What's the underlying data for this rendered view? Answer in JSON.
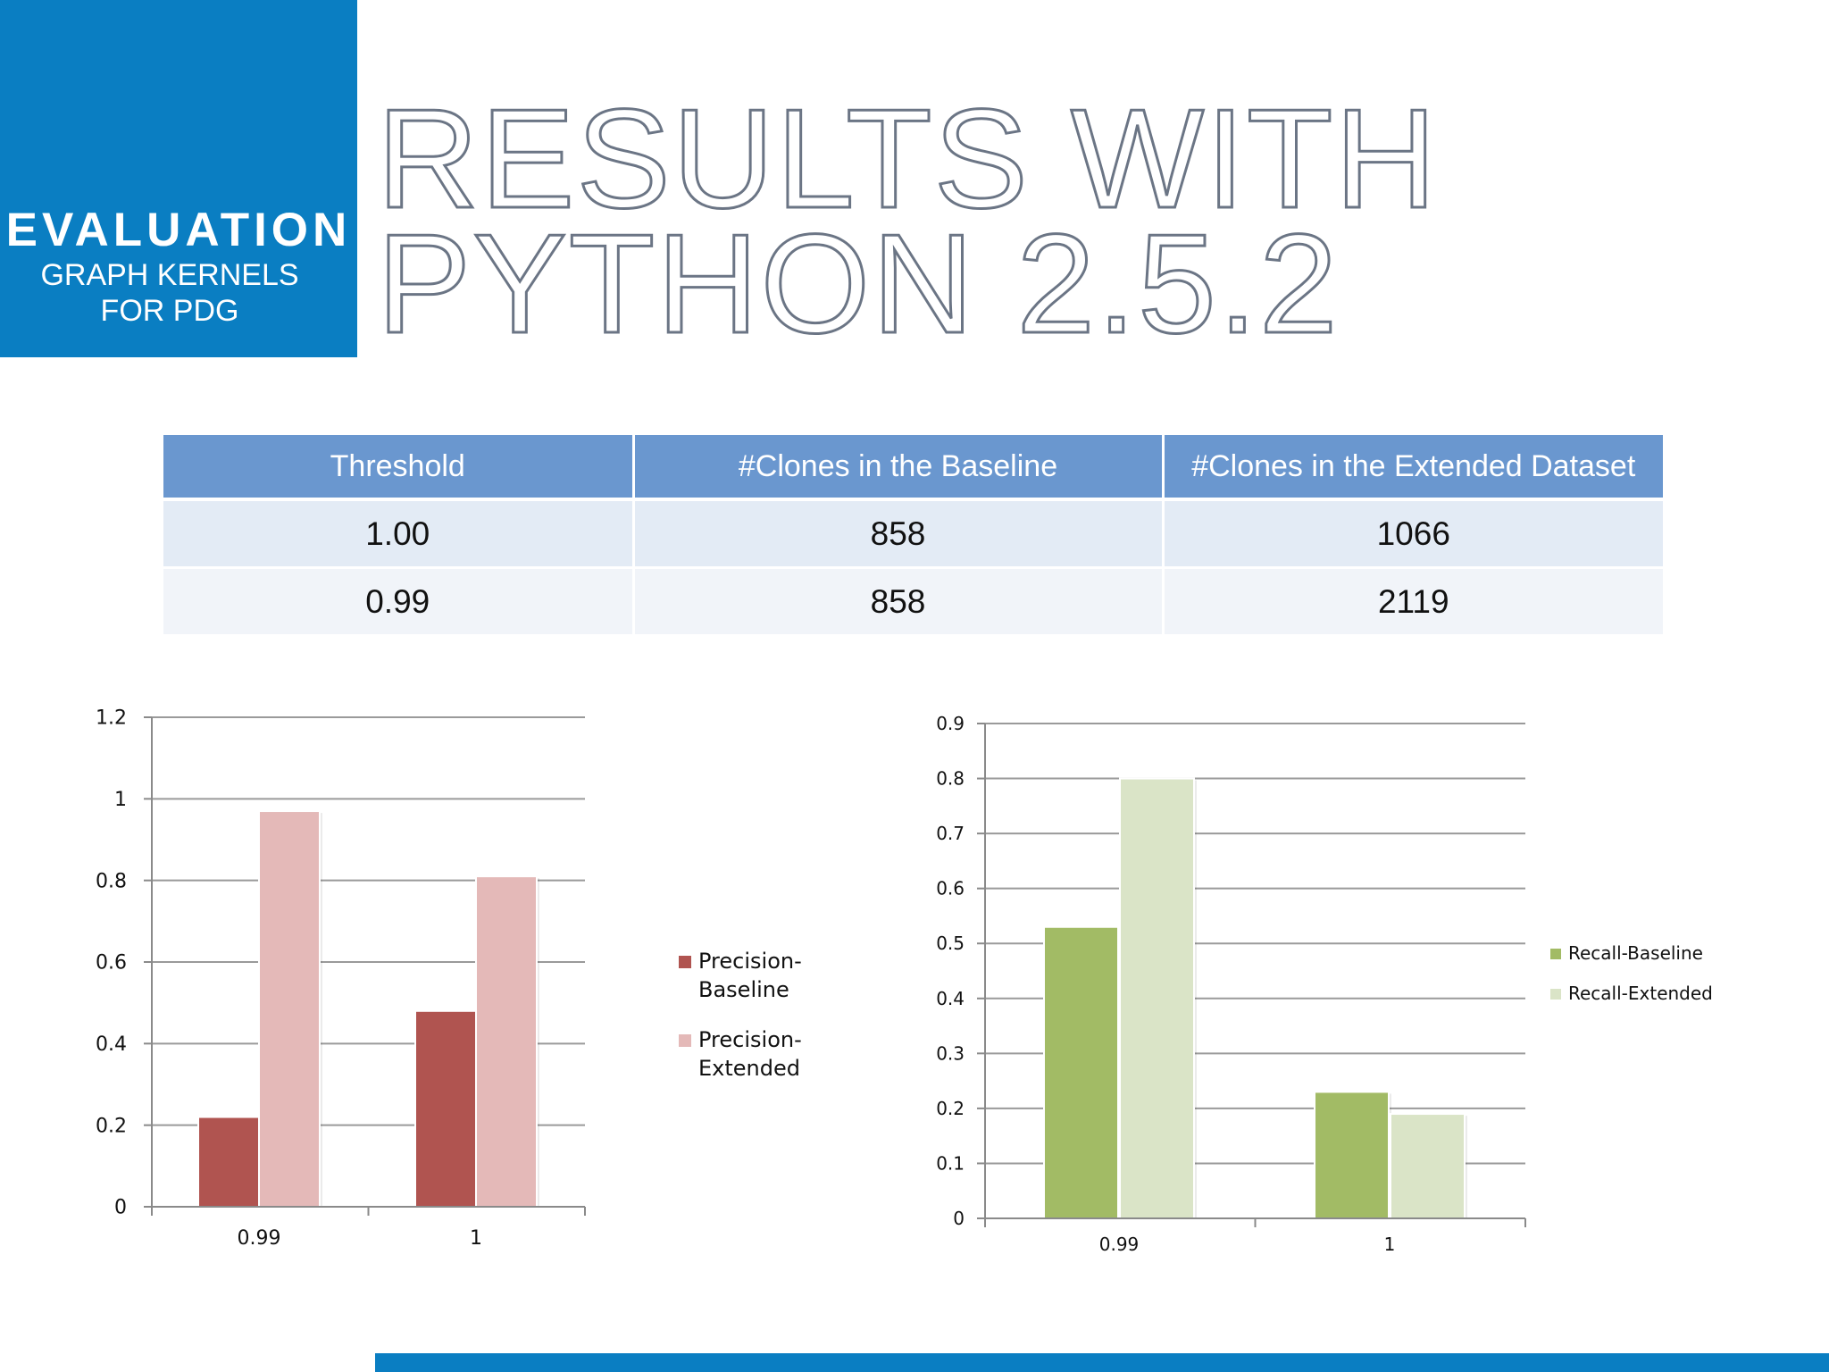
{
  "sidebar": {
    "title": "EVALUATION",
    "subtitle_line1": "GRAPH KERNELS",
    "subtitle_line2": "FOR PDG"
  },
  "header": {
    "title_line1": "RESULTS WITH",
    "title_line2": "PYTHON 2.5.2"
  },
  "table": {
    "headers": [
      "Threshold",
      "#Clones in the Baseline",
      "#Clones in the Extended Dataset"
    ],
    "rows": [
      [
        "1.00",
        "858",
        "1066"
      ],
      [
        "0.99",
        "858",
        "2119"
      ]
    ]
  },
  "colors": {
    "brand_blue": "#0a7ec2",
    "table_header": "#6a97cf",
    "precision_baseline": "#b05450",
    "precision_extended": "#e4b9b8",
    "recall_baseline": "#a2bb65",
    "recall_extended": "#dae4c7"
  },
  "chart_data": [
    {
      "type": "bar",
      "title": "",
      "xlabel": "",
      "ylabel": "",
      "categories": [
        "0.99",
        "1"
      ],
      "series": [
        {
          "name": "Precision-Baseline",
          "name_line1": "Precision-",
          "name_line2": "Baseline",
          "color": "#b05450",
          "values": [
            0.22,
            0.48
          ]
        },
        {
          "name": "Precision-Extended",
          "name_line1": "Precision-",
          "name_line2": "Extended",
          "color": "#e4b9b8",
          "values": [
            0.97,
            0.81
          ]
        }
      ],
      "ylim": [
        0,
        1.2
      ],
      "yticks": [
        "0",
        "0.2",
        "0.4",
        "0.6",
        "0.8",
        "1",
        "1.2"
      ],
      "grid": true,
      "legend": "right"
    },
    {
      "type": "bar",
      "title": "",
      "xlabel": "",
      "ylabel": "",
      "categories": [
        "0.99",
        "1"
      ],
      "series": [
        {
          "name": "Recall-Baseline",
          "color": "#a2bb65",
          "values": [
            0.53,
            0.23
          ]
        },
        {
          "name": "Recall-Extended",
          "color": "#dae4c7",
          "values": [
            0.8,
            0.19
          ]
        }
      ],
      "ylim": [
        0,
        0.9
      ],
      "yticks": [
        "0",
        "0.1",
        "0.2",
        "0.3",
        "0.4",
        "0.5",
        "0.6",
        "0.7",
        "0.8",
        "0.9"
      ],
      "grid": true,
      "legend": "right"
    }
  ]
}
